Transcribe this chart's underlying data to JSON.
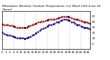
{
  "title": "Milwaukee Weather Outdoor Temperature (vs) Wind Chill (Last 24 Hours)",
  "title_fontsize": 3.2,
  "title_color": "#000000",
  "background_color": "#ffffff",
  "grid_color": "#999999",
  "temp_color": "#cc0000",
  "chill_color": "#0000cc",
  "black_dot_color": "#000000",
  "ylim": [
    -10,
    60
  ],
  "yticks": [
    0,
    10,
    20,
    30,
    40,
    50
  ],
  "ytick_labels": [
    "0",
    "10",
    "20",
    "30",
    "40",
    "50"
  ],
  "xlabel_fontsize": 2.8,
  "ylabel_fontsize": 2.8,
  "x_hours": [
    0,
    1,
    2,
    3,
    4,
    5,
    6,
    7,
    8,
    9,
    10,
    11,
    12,
    13,
    14,
    15,
    16,
    17,
    18,
    19,
    20,
    21,
    22,
    23,
    24,
    25,
    26,
    27,
    28,
    29,
    30,
    31,
    32,
    33,
    34,
    35,
    36,
    37,
    38,
    39,
    40,
    41,
    42,
    43,
    44,
    45,
    46,
    47
  ],
  "temp_values": [
    36,
    35,
    35,
    34,
    33,
    33,
    32,
    31,
    30,
    30,
    30,
    30,
    29,
    30,
    32,
    33,
    35,
    36,
    37,
    39,
    40,
    41,
    41,
    42,
    43,
    44,
    44,
    44,
    45,
    46,
    47,
    48,
    49,
    50,
    50,
    49,
    48,
    47,
    46,
    45,
    44,
    43,
    42,
    41,
    40,
    39,
    38,
    37
  ],
  "chill_values": [
    20,
    18,
    17,
    16,
    15,
    14,
    13,
    12,
    11,
    11,
    10,
    10,
    9,
    10,
    12,
    13,
    15,
    17,
    19,
    22,
    25,
    27,
    28,
    30,
    32,
    34,
    35,
    36,
    37,
    39,
    40,
    42,
    43,
    44,
    44,
    43,
    42,
    40,
    39,
    37,
    35,
    34,
    32,
    31,
    30,
    29,
    28,
    27
  ],
  "vgrid_x": [
    0,
    6,
    12,
    18,
    24,
    30,
    36,
    42,
    47
  ],
  "marker_size": 1.8,
  "line_width": 0.6,
  "dot_size": 2.0
}
